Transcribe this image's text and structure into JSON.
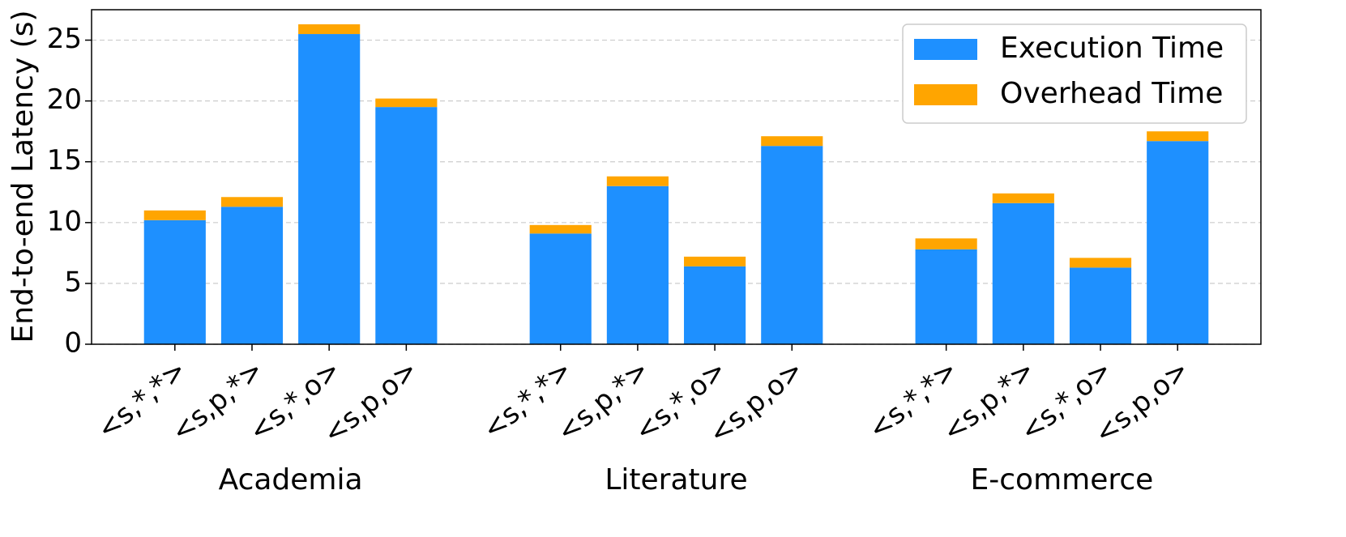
{
  "chart_data": {
    "type": "stacked_bar",
    "y_label": "End-to-end Latency (s)",
    "groups": [
      {
        "name": "Academia",
        "categories": [
          "<s,*,*>",
          "<s,p,*>",
          "<s,*,o>",
          "<s,p,o>"
        ]
      },
      {
        "name": "Literature",
        "categories": [
          "<s,*,*>",
          "<s,p,*>",
          "<s,*,o>",
          "<s,p,o>"
        ]
      },
      {
        "name": "E-commerce",
        "categories": [
          "<s,*,*>",
          "<s,p,*>",
          "<s,*,o>",
          "<s,p,o>"
        ]
      }
    ],
    "series": [
      {
        "name": "Execution Time",
        "color": "#1e90ff",
        "values": [
          10.2,
          11.3,
          25.5,
          19.5,
          9.1,
          13.0,
          6.4,
          16.3,
          7.8,
          11.6,
          6.3,
          16.7
        ]
      },
      {
        "name": "Overhead Time",
        "color": "#ffa500",
        "values": [
          0.8,
          0.8,
          0.8,
          0.7,
          0.7,
          0.8,
          0.8,
          0.8,
          0.9,
          0.8,
          0.8,
          0.8
        ]
      }
    ],
    "ylim": [
      0,
      27.5
    ],
    "yticks": [
      0,
      5,
      10,
      15,
      20,
      25
    ],
    "grid": true,
    "legend": "upper right"
  }
}
